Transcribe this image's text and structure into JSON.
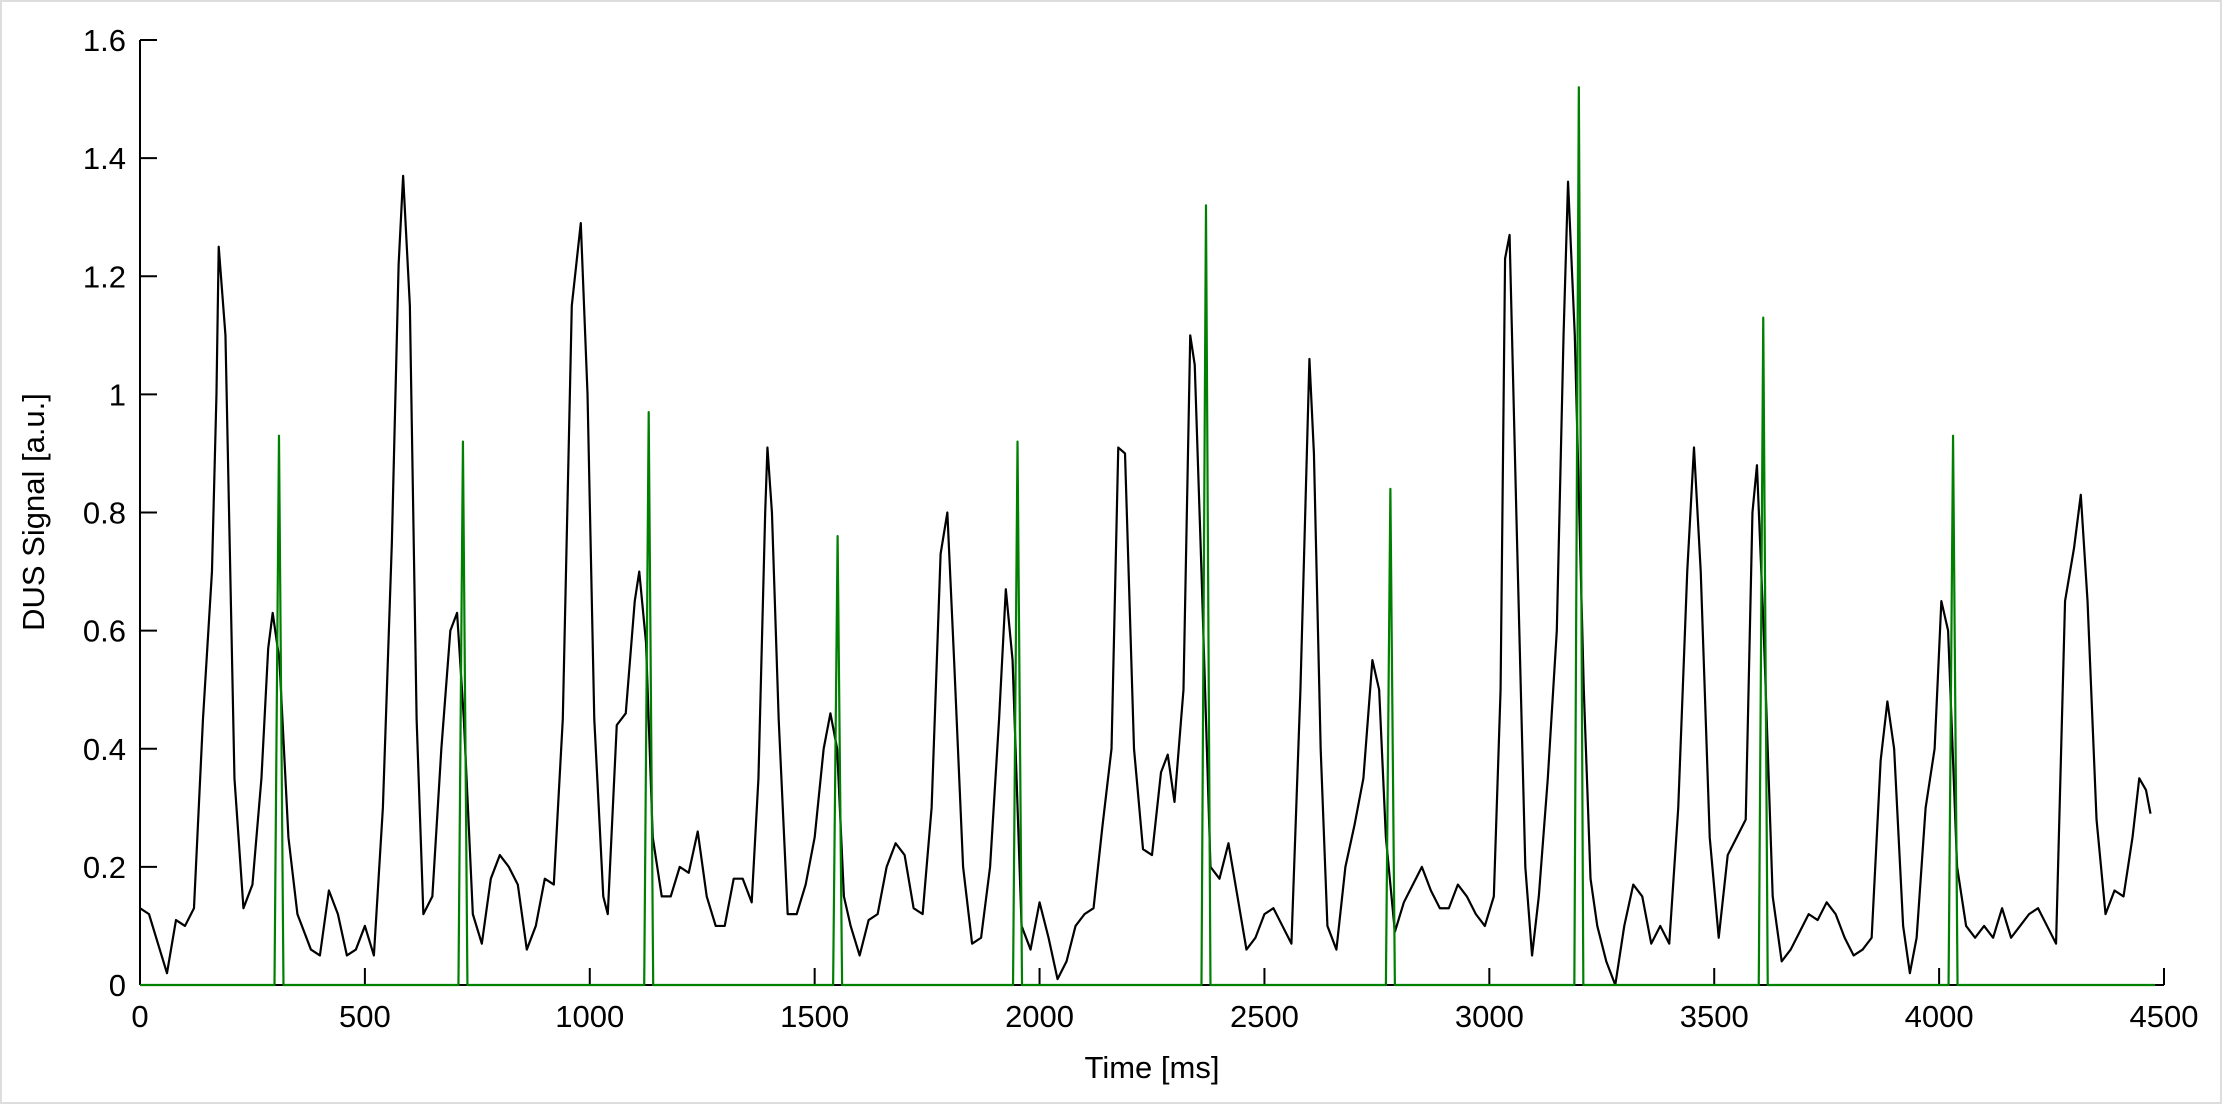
{
  "chart_data": {
    "type": "line",
    "xlabel": "Time [ms]",
    "ylabel": "DUS Signal [a.u.]",
    "xlim": [
      0,
      4500
    ],
    "xticks": [
      0,
      500,
      1000,
      1500,
      2000,
      2500,
      3000,
      3500,
      4000,
      4500
    ],
    "ylim": [
      0,
      1.6
    ],
    "yticks": [
      0,
      0.2,
      0.4,
      0.6,
      0.8,
      1,
      1.2,
      1.4,
      1.6
    ],
    "grid": false,
    "series": [
      {
        "color": "#000000",
        "x": [
          0,
          20,
          40,
          60,
          80,
          100,
          120,
          140,
          160,
          170,
          175,
          190,
          210,
          230,
          250,
          270,
          285,
          295,
          310,
          330,
          350,
          380,
          400,
          420,
          440,
          460,
          480,
          500,
          520,
          540,
          560,
          575,
          585,
          600,
          615,
          630,
          650,
          670,
          690,
          705,
          720,
          740,
          760,
          780,
          800,
          820,
          840,
          860,
          880,
          900,
          920,
          940,
          960,
          980,
          995,
          1010,
          1030,
          1040,
          1060,
          1080,
          1100,
          1110,
          1125,
          1140,
          1160,
          1180,
          1200,
          1220,
          1240,
          1260,
          1280,
          1300,
          1320,
          1340,
          1360,
          1375,
          1390,
          1395,
          1405,
          1420,
          1440,
          1460,
          1480,
          1500,
          1520,
          1535,
          1550,
          1565,
          1580,
          1600,
          1620,
          1640,
          1660,
          1680,
          1700,
          1720,
          1740,
          1760,
          1780,
          1795,
          1810,
          1830,
          1850,
          1870,
          1890,
          1910,
          1925,
          1940,
          1960,
          1980,
          2000,
          2020,
          2040,
          2060,
          2080,
          2100,
          2120,
          2140,
          2160,
          2175,
          2190,
          2210,
          2230,
          2250,
          2270,
          2285,
          2300,
          2320,
          2335,
          2345,
          2360,
          2380,
          2400,
          2420,
          2440,
          2460,
          2480,
          2500,
          2520,
          2540,
          2560,
          2580,
          2600,
          2610,
          2625,
          2640,
          2660,
          2680,
          2700,
          2720,
          2740,
          2755,
          2770,
          2790,
          2810,
          2830,
          2850,
          2870,
          2890,
          2910,
          2930,
          2950,
          2970,
          2990,
          3010,
          3025,
          3035,
          3045,
          3060,
          3080,
          3095,
          3110,
          3130,
          3150,
          3165,
          3175,
          3190,
          3210,
          3225,
          3240,
          3260,
          3280,
          3300,
          3320,
          3340,
          3360,
          3380,
          3400,
          3420,
          3440,
          3455,
          3470,
          3490,
          3510,
          3530,
          3550,
          3570,
          3585,
          3595,
          3610,
          3630,
          3650,
          3670,
          3690,
          3710,
          3730,
          3750,
          3770,
          3790,
          3810,
          3830,
          3850,
          3870,
          3885,
          3900,
          3920,
          3935,
          3950,
          3970,
          3990,
          4005,
          4020,
          4040,
          4060,
          4080,
          4100,
          4120,
          4140,
          4160,
          4180,
          4200,
          4220,
          4240,
          4260,
          4280,
          4300,
          4315,
          4330,
          4350,
          4370,
          4390,
          4410,
          4430,
          4445,
          4460,
          4470
        ],
        "values": [
          0.13,
          0.12,
          0.07,
          0.02,
          0.11,
          0.1,
          0.13,
          0.45,
          0.7,
          1.0,
          1.25,
          1.1,
          0.35,
          0.13,
          0.17,
          0.35,
          0.57,
          0.63,
          0.55,
          0.25,
          0.12,
          0.06,
          0.05,
          0.16,
          0.12,
          0.05,
          0.06,
          0.1,
          0.05,
          0.3,
          0.75,
          1.22,
          1.37,
          1.15,
          0.45,
          0.12,
          0.15,
          0.4,
          0.6,
          0.63,
          0.45,
          0.12,
          0.07,
          0.18,
          0.22,
          0.2,
          0.17,
          0.06,
          0.1,
          0.18,
          0.17,
          0.45,
          1.15,
          1.29,
          1.0,
          0.45,
          0.15,
          0.12,
          0.44,
          0.46,
          0.65,
          0.7,
          0.58,
          0.25,
          0.15,
          0.15,
          0.2,
          0.19,
          0.26,
          0.15,
          0.1,
          0.1,
          0.18,
          0.18,
          0.14,
          0.35,
          0.8,
          0.91,
          0.8,
          0.45,
          0.12,
          0.12,
          0.17,
          0.25,
          0.4,
          0.46,
          0.4,
          0.15,
          0.1,
          0.05,
          0.11,
          0.12,
          0.2,
          0.24,
          0.22,
          0.13,
          0.12,
          0.3,
          0.73,
          0.8,
          0.55,
          0.2,
          0.07,
          0.08,
          0.2,
          0.45,
          0.67,
          0.55,
          0.1,
          0.06,
          0.14,
          0.08,
          0.01,
          0.04,
          0.1,
          0.12,
          0.13,
          0.27,
          0.4,
          0.91,
          0.9,
          0.4,
          0.23,
          0.22,
          0.36,
          0.39,
          0.31,
          0.5,
          1.1,
          1.05,
          0.7,
          0.2,
          0.18,
          0.24,
          0.15,
          0.06,
          0.08,
          0.12,
          0.13,
          0.1,
          0.07,
          0.5,
          1.06,
          0.9,
          0.4,
          0.1,
          0.06,
          0.2,
          0.27,
          0.35,
          0.55,
          0.5,
          0.25,
          0.09,
          0.14,
          0.17,
          0.2,
          0.16,
          0.13,
          0.13,
          0.17,
          0.15,
          0.12,
          0.1,
          0.15,
          0.5,
          1.23,
          1.27,
          0.8,
          0.2,
          0.05,
          0.15,
          0.35,
          0.6,
          1.1,
          1.36,
          1.1,
          0.5,
          0.18,
          0.1,
          0.04,
          0.0,
          0.1,
          0.17,
          0.15,
          0.07,
          0.1,
          0.07,
          0.3,
          0.7,
          0.91,
          0.7,
          0.25,
          0.08,
          0.22,
          0.25,
          0.28,
          0.8,
          0.88,
          0.6,
          0.15,
          0.04,
          0.06,
          0.09,
          0.12,
          0.11,
          0.14,
          0.12,
          0.08,
          0.05,
          0.06,
          0.08,
          0.38,
          0.48,
          0.4,
          0.1,
          0.02,
          0.08,
          0.3,
          0.4,
          0.65,
          0.6,
          0.2,
          0.1,
          0.08,
          0.1,
          0.08,
          0.13,
          0.08,
          0.1,
          0.12,
          0.13,
          0.1,
          0.07,
          0.65,
          0.74,
          0.83,
          0.65,
          0.28,
          0.12,
          0.16,
          0.15,
          0.25,
          0.35,
          0.33,
          0.29
        ]
      },
      {
        "color": "#008000",
        "x": [
          0,
          299,
          309,
          319,
          708,
          718,
          728,
          1121,
          1131,
          1141,
          1541,
          1551,
          1561,
          1941,
          1951,
          1961,
          2360,
          2370,
          2380,
          2770,
          2780,
          2790,
          3189,
          3199,
          3209,
          3599,
          3609,
          3619,
          4021,
          4031,
          4041,
          4480
        ],
        "values": [
          0,
          0,
          0.93,
          0,
          0,
          0.92,
          0,
          0,
          0.97,
          0,
          0,
          0.76,
          0,
          0,
          0.92,
          0,
          0,
          1.32,
          0,
          0,
          0.84,
          0,
          0,
          1.52,
          0,
          0,
          1.13,
          0,
          0,
          0.93,
          0,
          0
        ]
      }
    ]
  }
}
